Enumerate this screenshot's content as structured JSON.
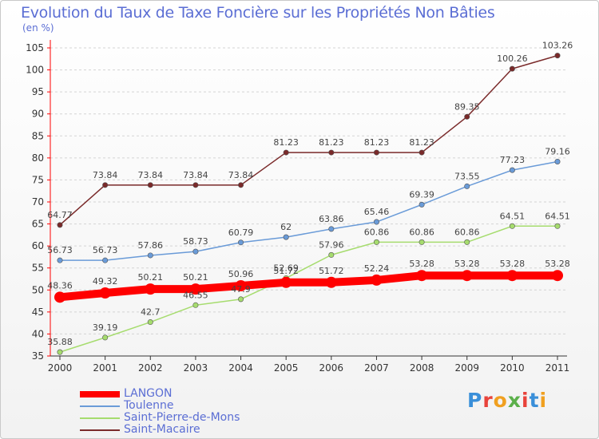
{
  "title": "Evolution du Taux de Taxe Foncière sur les Propriétés Non Bâties",
  "unit_label": "(en %)",
  "logo_text": "Proxiti",
  "chart_data": {
    "type": "line",
    "title": "Evolution du Taux de Taxe Foncière sur les Propriétés Non Bâties",
    "ylabel": "(en %)",
    "xlabel": "",
    "x": [
      "2000",
      "2001",
      "2002",
      "2003",
      "2004",
      "2005",
      "2006",
      "2007",
      "2008",
      "2009",
      "2010",
      "2011"
    ],
    "ylim": [
      35,
      105
    ],
    "yticks": [
      35,
      40,
      45,
      50,
      55,
      60,
      65,
      70,
      75,
      80,
      85,
      90,
      95,
      100,
      105
    ],
    "grid": "horizontal dashed",
    "legend_position": "bottom-left",
    "series": [
      {
        "name": "LANGON",
        "color": "#ff0000",
        "values": [
          48.36,
          49.32,
          50.21,
          50.21,
          50.96,
          51.72,
          51.72,
          52.24,
          53.28,
          53.28,
          53.28,
          53.28
        ],
        "labels": [
          "48.36",
          "49.32",
          "50.21",
          "50.21",
          "50.96",
          "51.72",
          "51.72",
          "52.24",
          "53.28",
          "53.28",
          "53.28",
          "53.28"
        ]
      },
      {
        "name": "Toulenne",
        "color": "#6a9bd8",
        "values": [
          56.73,
          56.73,
          57.86,
          58.73,
          60.79,
          62,
          63.86,
          65.46,
          69.39,
          73.55,
          77.23,
          79.16
        ],
        "labels": [
          "56.73",
          "56.73",
          "57.86",
          "58.73",
          "60.79",
          "62",
          "63.86",
          "65.46",
          "69.39",
          "73.55",
          "77.23",
          "79.16"
        ]
      },
      {
        "name": "Saint-Pierre-de-Mons",
        "color": "#a6dc6e",
        "values": [
          35.88,
          39.19,
          42.7,
          46.55,
          47.9,
          52.69,
          57.96,
          60.86,
          60.86,
          60.86,
          64.51,
          64.51
        ],
        "labels": [
          "35.88",
          "39.19",
          "42.7",
          "46.55",
          "47.9",
          "52.69",
          "57.96",
          "60.86",
          "60.86",
          "60.86",
          "64.51",
          "64.51"
        ]
      },
      {
        "name": "Saint-Macaire",
        "color": "#7a2a2a",
        "values": [
          64.77,
          73.84,
          73.84,
          73.84,
          73.84,
          81.23,
          81.23,
          81.23,
          81.23,
          89.35,
          100.26,
          103.26
        ],
        "labels": [
          "64.77",
          "73.84",
          "73.84",
          "73.84",
          "73.84",
          "81.23",
          "81.23",
          "81.23",
          "81.23",
          "89.35",
          "100.26",
          "103.26"
        ]
      }
    ]
  }
}
